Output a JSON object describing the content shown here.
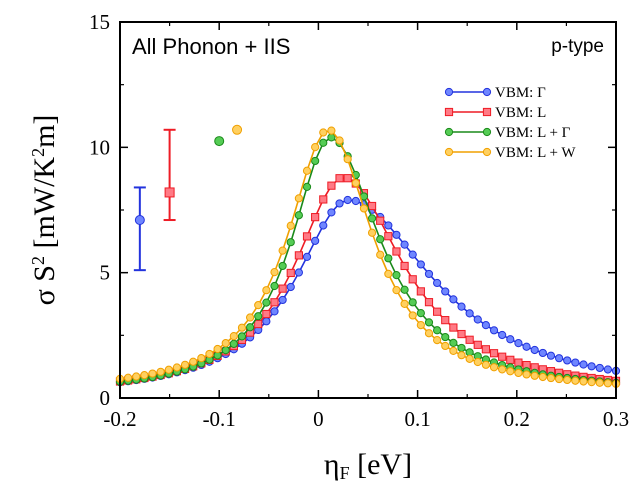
{
  "chart_data": {
    "type": "line",
    "xlabel_main": "η",
    "xlabel_sub": "F",
    "xlabel_unit": " [eV]",
    "ylabel_main": "σ S",
    "ylabel_sup": "2",
    "ylabel_unit_a": " [mW/K",
    "ylabel_unit_sup": "2",
    "ylabel_unit_b": "m]",
    "annotation_left": "All Phonon + IIS",
    "annotation_right": "p-type",
    "xlim": [
      -0.2,
      0.3
    ],
    "ylim": [
      0,
      15
    ],
    "xticks": [
      "-0.2",
      "-0.1",
      "0",
      "0.1",
      "0.2",
      "0.3"
    ],
    "xtick_values": [
      -0.2,
      -0.1,
      0,
      0.1,
      0.2,
      0.3
    ],
    "yticks": [
      "0",
      "5",
      "10",
      "15"
    ],
    "ytick_values": [
      0,
      5,
      10,
      15
    ],
    "grid": false,
    "legend_position": "right",
    "series": [
      {
        "name": "VBM: Γ",
        "color": "#2233dd",
        "fill": "#6f86ff",
        "marker": "circle",
        "peak_x": 0.03,
        "peak_y": 7.9,
        "w_left": 0.065,
        "w_right": 0.105,
        "baseline": 0.05,
        "errorbar": {
          "x": -0.18,
          "y": 7.1,
          "ylow": 5.1,
          "yhigh": 8.4
        }
      },
      {
        "name": "VBM: L",
        "color": "#ee1c25",
        "fill": "#ff7a85",
        "marker": "square",
        "peak_x": 0.025,
        "peak_y": 8.8,
        "w_left": 0.06,
        "w_right": 0.075,
        "baseline": 0.08,
        "errorbar": {
          "x": -0.15,
          "y": 8.2,
          "ylow": 7.1,
          "yhigh": 10.7
        }
      },
      {
        "name": "VBM: L + Γ",
        "color": "#1a8a1a",
        "fill": "#55cc55",
        "marker": "circle",
        "peak_x": 0.012,
        "peak_y": 10.4,
        "w_left": 0.048,
        "w_right": 0.062,
        "baseline": 0.15,
        "point": {
          "x": -0.1,
          "y": 10.25
        }
      },
      {
        "name": "VBM: L + W",
        "color": "#f0a000",
        "fill": "#ffd060",
        "marker": "circle",
        "peak_x": 0.01,
        "peak_y": 10.7,
        "w_left": 0.05,
        "w_right": 0.055,
        "baseline": 0.2,
        "point": {
          "x": -0.082,
          "y": 10.7
        }
      }
    ]
  }
}
